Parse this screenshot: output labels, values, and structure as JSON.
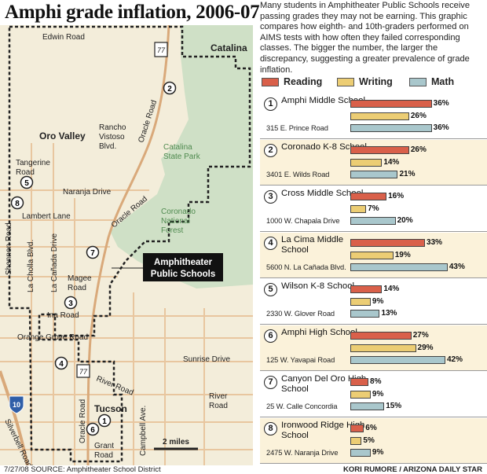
{
  "title": "Amphi grade inflation, 2006-07",
  "intro": "Many students in Amphitheater Public Schools receive passing grades they may not be earning. This graphic compares how eighth- and 10th-graders performed on AIMS tests with how often they failed corresponding classes. The bigger the number, the larger the discrepancy, suggesting a greater prevalence of grade inflation.",
  "colors": {
    "reading": "#d9604a",
    "writing": "#eccd74",
    "math": "#a9c7cc",
    "map_green": "#cfe0c6",
    "map_land": "#f3edda",
    "map_roads": "#e8c69f"
  },
  "legend": [
    "Reading",
    "Writing",
    "Math"
  ],
  "map": {
    "district_label": [
      "Amphitheater",
      "Public Schools"
    ],
    "places": [
      "Edwin Road",
      "Catalina",
      "Oro Valley",
      "Rancho Vistoso Blvd.",
      "Catalina State Park",
      "Oracle Road",
      "Tangerine Road",
      "Naranja Drive",
      "Lambert Lane",
      "Coronado National Forest",
      "Shannon Road",
      "La Cholla Blvd.",
      "La Cañada Drive",
      "Magee Road",
      "Ina Road",
      "Orange Grove Road",
      "Sunrise Drive",
      "River Road",
      "Tucson",
      "Oracle Road",
      "Campbell Ave.",
      "Grant Road",
      "Silverbell Road",
      "River Road"
    ],
    "highway_77": "77",
    "interstate_10": "10",
    "scale": "2 miles"
  },
  "chart_data": {
    "type": "bar",
    "series_names": [
      "Reading",
      "Writing",
      "Math"
    ],
    "schools": [
      {
        "num": "1",
        "name": "Amphi Middle School",
        "address": "315 E. Prince Road",
        "values": [
          36,
          26,
          36
        ],
        "labels": [
          "36%",
          "26%",
          "36%"
        ]
      },
      {
        "num": "2",
        "name": "Coronado K-8 School",
        "address": "3401 E. Wilds Road",
        "values": [
          26,
          14,
          21
        ],
        "labels": [
          "26%",
          "14%",
          "21%"
        ]
      },
      {
        "num": "3",
        "name": "Cross Middle School",
        "address": "1000 W. Chapala Drive",
        "values": [
          16,
          7,
          20
        ],
        "labels": [
          "16%",
          "7%",
          "20%"
        ]
      },
      {
        "num": "4",
        "name": "La Cima Middle School",
        "address": "5600 N. La Cañada Blvd.",
        "values": [
          33,
          19,
          43
        ],
        "labels": [
          "33%",
          "19%",
          "43%"
        ]
      },
      {
        "num": "5",
        "name": "Wilson K-8 School",
        "address": "2330 W. Glover Road",
        "values": [
          14,
          9,
          13
        ],
        "labels": [
          "14%",
          "9%",
          "13%"
        ]
      },
      {
        "num": "6",
        "name": "Amphi High School",
        "address": "125 W. Yavapai Road",
        "values": [
          27,
          29,
          42
        ],
        "labels": [
          "27%",
          "29%",
          "42%"
        ]
      },
      {
        "num": "7",
        "name": "Canyon Del Oro High School",
        "address": "25 W. Calle Concordia",
        "values": [
          8,
          9,
          15
        ],
        "labels": [
          "8%",
          "9%",
          "15%"
        ]
      },
      {
        "num": "8",
        "name": "Ironwood Ridge High School",
        "address": "2475 W. Naranja Drive",
        "values": [
          6,
          5,
          9
        ],
        "labels": [
          "6%",
          "5%",
          "9%"
        ]
      }
    ]
  },
  "footer": {
    "left": "7/27/08  SOURCE: Amphitheater School District",
    "right": "KORI RUMORE / ARIZONA DAILY STAR"
  }
}
